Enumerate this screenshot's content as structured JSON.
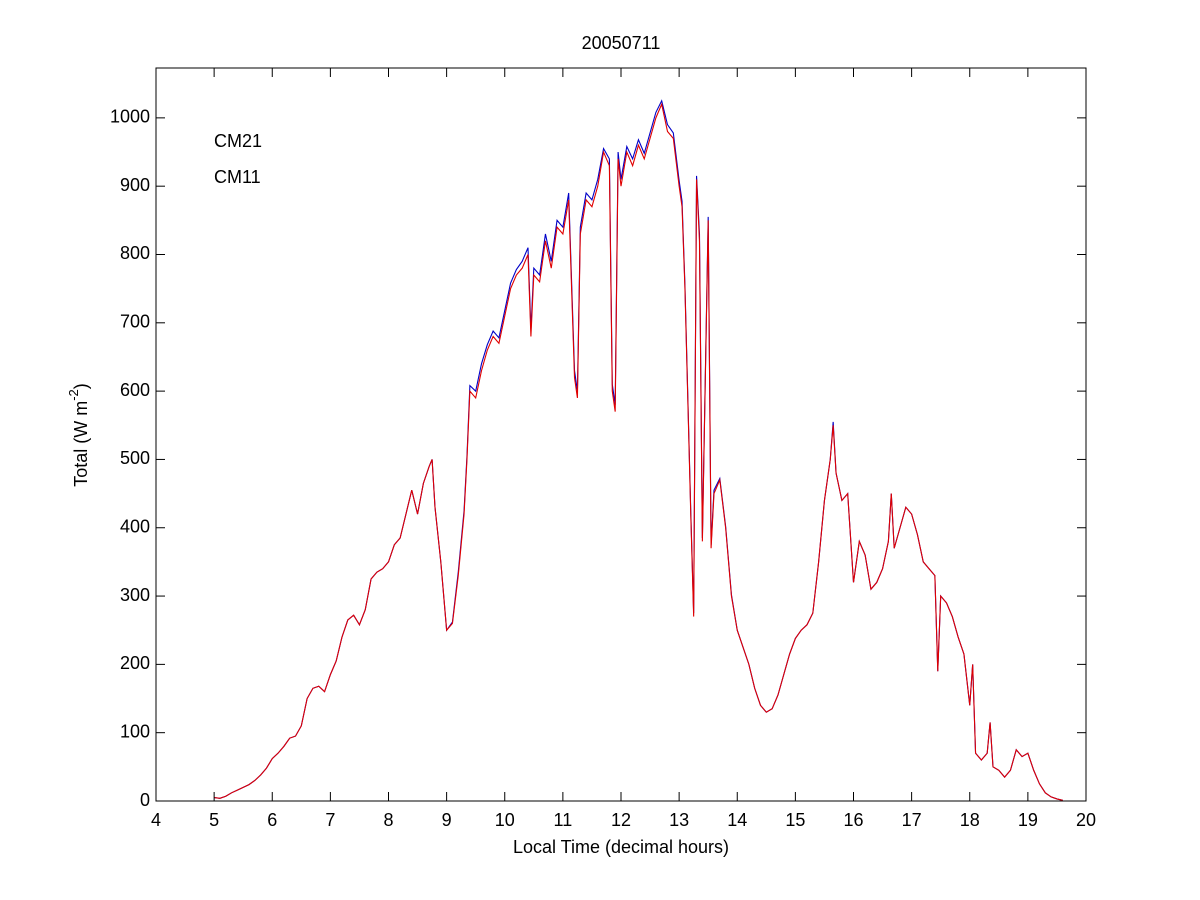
{
  "chart_data": {
    "type": "line",
    "title": "20050711",
    "xlabel": "Local Time (decimal hours)",
    "ylabel_parts": [
      "Total (W m",
      "-2",
      ")"
    ],
    "x": [
      5,
      5.1,
      5.2,
      5.3,
      5.4,
      5.5,
      5.6,
      5.7,
      5.8,
      5.9,
      6,
      6.1,
      6.2,
      6.3,
      6.4,
      6.5,
      6.6,
      6.7,
      6.8,
      6.9,
      7,
      7.1,
      7.2,
      7.3,
      7.4,
      7.5,
      7.6,
      7.7,
      7.8,
      7.9,
      8,
      8.1,
      8.2,
      8.3,
      8.4,
      8.5,
      8.6,
      8.7,
      8.75,
      8.8,
      8.9,
      9,
      9.1,
      9.2,
      9.3,
      9.35,
      9.4,
      9.5,
      9.6,
      9.7,
      9.8,
      9.9,
      10,
      10.1,
      10.2,
      10.3,
      10.4,
      10.45,
      10.5,
      10.6,
      10.7,
      10.8,
      10.9,
      11,
      11.1,
      11.2,
      11.25,
      11.3,
      11.4,
      11.5,
      11.6,
      11.7,
      11.8,
      11.85,
      11.9,
      11.95,
      12,
      12.1,
      12.2,
      12.3,
      12.4,
      12.5,
      12.6,
      12.7,
      12.8,
      12.9,
      13,
      13.05,
      13.1,
      13.2,
      13.25,
      13.3,
      13.35,
      13.4,
      13.5,
      13.55,
      13.6,
      13.7,
      13.8,
      13.9,
      14,
      14.1,
      14.2,
      14.3,
      14.4,
      14.5,
      14.6,
      14.7,
      14.8,
      14.9,
      15,
      15.1,
      15.2,
      15.3,
      15.4,
      15.5,
      15.6,
      15.65,
      15.7,
      15.8,
      15.9,
      16,
      16.1,
      16.2,
      16.3,
      16.4,
      16.5,
      16.6,
      16.65,
      16.7,
      16.8,
      16.9,
      17,
      17.1,
      17.2,
      17.3,
      17.4,
      17.45,
      17.5,
      17.6,
      17.7,
      17.8,
      17.9,
      18,
      18.05,
      18.1,
      18.2,
      18.3,
      18.35,
      18.4,
      18.5,
      18.6,
      18.7,
      18.8,
      18.9,
      19,
      19.1,
      19.2,
      19.3,
      19.4,
      19.5,
      19.6
    ],
    "series": [
      {
        "name": "CM21",
        "color": "#0000c8",
        "values": [
          5,
          4,
          7,
          12,
          16,
          20,
          24,
          30,
          38,
          48,
          62,
          70,
          80,
          92,
          95,
          110,
          150,
          165,
          168,
          160,
          185,
          205,
          240,
          265,
          272,
          258,
          280,
          325,
          335,
          340,
          350,
          375,
          385,
          420,
          455,
          420,
          465,
          490,
          500,
          430,
          350,
          250,
          262,
          335,
          425,
          505,
          608,
          600,
          640,
          668,
          688,
          678,
          718,
          758,
          778,
          790,
          810,
          690,
          780,
          770,
          830,
          790,
          850,
          840,
          890,
          630,
          600,
          840,
          890,
          880,
          910,
          955,
          940,
          610,
          580,
          950,
          910,
          958,
          940,
          968,
          948,
          978,
          1008,
          1025,
          990,
          978,
          908,
          878,
          755,
          425,
          275,
          915,
          830,
          385,
          855,
          375,
          455,
          472,
          402,
          302,
          250,
          225,
          200,
          165,
          140,
          130,
          135,
          155,
          185,
          215,
          238,
          250,
          258,
          275,
          350,
          440,
          500,
          555,
          480,
          440,
          450,
          320,
          380,
          360,
          310,
          320,
          340,
          380,
          450,
          370,
          400,
          430,
          420,
          390,
          350,
          340,
          330,
          190,
          300,
          290,
          270,
          240,
          215,
          140,
          200,
          70,
          60,
          70,
          115,
          50,
          45,
          35,
          45,
          75,
          65,
          70,
          45,
          25,
          12,
          6,
          3,
          1
        ]
      },
      {
        "name": "CM11",
        "color": "#e00000",
        "values": [
          5,
          4,
          7,
          12,
          16,
          20,
          24,
          30,
          38,
          48,
          62,
          70,
          80,
          92,
          95,
          110,
          150,
          165,
          168,
          160,
          185,
          205,
          240,
          265,
          272,
          258,
          280,
          325,
          335,
          340,
          350,
          375,
          385,
          420,
          455,
          420,
          465,
          490,
          500,
          430,
          350,
          250,
          260,
          330,
          420,
          500,
          600,
          590,
          630,
          660,
          680,
          670,
          710,
          750,
          770,
          780,
          800,
          680,
          770,
          760,
          820,
          780,
          840,
          830,
          880,
          620,
          590,
          830,
          880,
          870,
          900,
          950,
          930,
          600,
          570,
          940,
          900,
          950,
          930,
          960,
          940,
          970,
          1000,
          1020,
          980,
          970,
          900,
          870,
          750,
          420,
          270,
          910,
          820,
          380,
          850,
          370,
          450,
          470,
          400,
          300,
          250,
          225,
          200,
          165,
          140,
          130,
          135,
          155,
          185,
          215,
          238,
          250,
          258,
          275,
          350,
          440,
          500,
          550,
          480,
          440,
          450,
          320,
          380,
          360,
          310,
          320,
          340,
          380,
          450,
          370,
          400,
          430,
          420,
          390,
          350,
          340,
          330,
          190,
          300,
          290,
          270,
          240,
          215,
          140,
          200,
          70,
          60,
          70,
          115,
          50,
          45,
          35,
          45,
          75,
          65,
          70,
          45,
          25,
          12,
          6,
          3,
          1
        ]
      }
    ],
    "xlim": [
      4,
      20
    ],
    "xticks": [
      4,
      5,
      6,
      7,
      8,
      9,
      10,
      11,
      12,
      13,
      14,
      15,
      16,
      17,
      18,
      19,
      20
    ],
    "ylim": [
      0,
      1073
    ],
    "yticks": [
      0,
      100,
      200,
      300,
      400,
      500,
      600,
      700,
      800,
      900,
      1000
    ],
    "grid": false,
    "legend": "upper left"
  }
}
